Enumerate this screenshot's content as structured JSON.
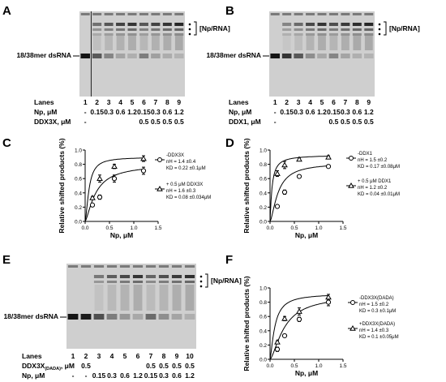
{
  "panels": {
    "A": {
      "letter": "A",
      "band_label": "[Np/RNA]",
      "free_label": "18/38mer dsRNA",
      "row_labels": [
        "Lanes",
        "Np, μM",
        "DDX3X, μM"
      ],
      "lanes": [
        "1",
        "2",
        "3",
        "4",
        "5",
        "6",
        "7",
        "8",
        "9"
      ],
      "np": [
        "-",
        "0.15",
        "0.3",
        "0.6",
        "1.2",
        "0.15",
        "0.3",
        "0.6",
        "1.2"
      ],
      "helicase": [
        "-",
        "",
        "",
        "",
        "",
        "0.5",
        "0.5",
        "0.5",
        "0.5"
      ],
      "gel": {
        "free": [
          0.95,
          0.55,
          0.3,
          0.12,
          0.06,
          0.35,
          0.15,
          0.08,
          0.04
        ],
        "shift": [
          0.0,
          0.35,
          0.55,
          0.7,
          0.8,
          0.55,
          0.7,
          0.8,
          0.9
        ]
      }
    },
    "B": {
      "letter": "B",
      "band_label": "[Np/RNA]",
      "free_label": "18/38mer dsRNA",
      "row_labels": [
        "Lanes",
        "Np, μM",
        "DDX1, μM"
      ],
      "lanes": [
        "1",
        "2",
        "3",
        "4",
        "5",
        "6",
        "7",
        "8",
        "9"
      ],
      "np": [
        "-",
        "0.15",
        "0.3",
        "0.6",
        "1.2",
        "0.15",
        "0.3",
        "0.6",
        "1.2"
      ],
      "helicase": [
        "-",
        "",
        "",
        "",
        "",
        "0.5",
        "0.5",
        "0.5",
        "0.5"
      ],
      "gel": {
        "free": [
          0.95,
          0.75,
          0.55,
          0.25,
          0.1,
          0.3,
          0.12,
          0.06,
          0.04
        ],
        "shift": [
          0.0,
          0.2,
          0.4,
          0.65,
          0.8,
          0.6,
          0.75,
          0.85,
          0.9
        ]
      }
    },
    "E": {
      "letter": "E",
      "band_label": "[Np/RNA]",
      "free_label": "18/38mer dsRNA",
      "row_labels": [
        "Lanes",
        "DDX3X",
        "(DADA)",
        ", μM",
        "Np, μM"
      ],
      "lanes": [
        "1",
        "2",
        "3",
        "4",
        "5",
        "6",
        "7",
        "8",
        "9",
        "10"
      ],
      "np": [
        "-",
        "-",
        "0.15",
        "0.3",
        "0.6",
        "1.2",
        "0.15",
        "0.3",
        "0.6",
        "1.2"
      ],
      "helicase": [
        "",
        "0.5",
        "",
        "",
        "",
        "",
        "0.5",
        "0.5",
        "0.5",
        "0.5"
      ],
      "gel": {
        "free": [
          0.95,
          0.9,
          0.6,
          0.35,
          0.2,
          0.1,
          0.45,
          0.25,
          0.12,
          0.06
        ],
        "shift": [
          0.0,
          0.0,
          0.3,
          0.5,
          0.65,
          0.8,
          0.45,
          0.6,
          0.75,
          0.85
        ]
      }
    }
  },
  "charts": {
    "C": {
      "letter": "C",
      "chart_data": {
        "type": "scatter",
        "xlabel": "Np, μM",
        "ylabel": "Relative shifted products (%)",
        "xlim": [
          0,
          1.5
        ],
        "ylim": [
          0,
          1.0
        ],
        "xticks": [
          "0.0",
          "0.5",
          "1.0",
          "1.5"
        ],
        "yticks": [
          "0.0",
          "0.2",
          "0.4",
          "0.6",
          "0.8",
          "1.0"
        ],
        "series": [
          {
            "marker": "circle",
            "x": [
              0.15,
              0.3,
              0.6,
              1.2
            ],
            "y": [
              0.23,
              0.34,
              0.6,
              0.71
            ],
            "err": [
              0.02,
              0.03,
              0.05,
              0.05
            ],
            "kd": 0.22,
            "nh": 1.4,
            "max": 0.8
          },
          {
            "marker": "triangle",
            "x": [
              0.15,
              0.3,
              0.6,
              1.2
            ],
            "y": [
              0.33,
              0.6,
              0.77,
              0.88
            ],
            "err": [
              0.02,
              0.05,
              0.03,
              0.04
            ],
            "kd": 0.08,
            "nh": 1.6,
            "max": 0.9
          }
        ],
        "legend": [
          {
            "marker": "circle",
            "lines": [
              "-DDX3X",
              "nH = 1.4 ±0.4",
              "KD = 0.22 ±0.1μM"
            ]
          },
          {
            "marker": "triangle",
            "lines": [
              "+ 0.5 μM DDX3X",
              "nH = 1.6 ±0.3",
              "KD = 0.08 ±0.034μM"
            ]
          }
        ]
      }
    },
    "D": {
      "letter": "D",
      "chart_data": {
        "type": "scatter",
        "xlabel": "Np, μM",
        "ylabel": "Relative shifted products (%)",
        "xlim": [
          0,
          1.5
        ],
        "ylim": [
          0,
          1.0
        ],
        "xticks": [
          "0.0",
          "0.5",
          "1.0",
          "1.5"
        ],
        "yticks": [
          "0.0",
          "0.2",
          "0.4",
          "0.6",
          "0.8",
          "1.0"
        ],
        "series": [
          {
            "marker": "circle",
            "x": [
              0.15,
              0.3,
              0.6,
              1.2
            ],
            "y": [
              0.21,
              0.41,
              0.63,
              0.77
            ],
            "err": [
              0.02,
              0.03,
              0.02,
              0.02
            ],
            "kd": 0.17,
            "nh": 1.5,
            "max": 0.82
          },
          {
            "marker": "triangle",
            "x": [
              0.15,
              0.3,
              0.6,
              1.2
            ],
            "y": [
              0.67,
              0.79,
              0.87,
              0.9
            ],
            "err": [
              0.04,
              0.05,
              0.02,
              0.02
            ],
            "kd": 0.04,
            "nh": 1.2,
            "max": 0.93
          }
        ],
        "legend": [
          {
            "marker": "circle",
            "lines": [
              "-DDX1",
              "nH = 1.5 ±0.2",
              "KD = 0.17 ±0.08μM"
            ]
          },
          {
            "marker": "triangle",
            "lines": [
              "+ 0.5 μM DDX1",
              "nH = 1.2 ±0.2",
              "KD = 0.04 ±0.01μM"
            ]
          }
        ]
      }
    },
    "F": {
      "letter": "F",
      "chart_data": {
        "type": "scatter",
        "xlabel": "Np, μM",
        "ylabel": "Relative shifted products (%)",
        "xlim": [
          0,
          1.5
        ],
        "ylim": [
          0,
          1.0
        ],
        "xticks": [
          "0.0",
          "0.5",
          "1.0",
          "1.5"
        ],
        "yticks": [
          "0.0",
          "0.2",
          "0.4",
          "0.6",
          "0.8",
          "1.0"
        ],
        "series": [
          {
            "marker": "circle",
            "x": [
              0.15,
              0.3,
              0.6,
              1.2
            ],
            "y": [
              0.14,
              0.33,
              0.56,
              0.8
            ],
            "err": [
              0.03,
              0.02,
              0.03,
              0.05
            ],
            "kd": 0.3,
            "nh": 1.5,
            "max": 0.9
          },
          {
            "marker": "triangle",
            "x": [
              0.15,
              0.3,
              0.6,
              1.2
            ],
            "y": [
              0.24,
              0.57,
              0.67,
              0.87
            ],
            "err": [
              0.02,
              0.03,
              0.05,
              0.04
            ],
            "kd": 0.1,
            "nh": 1.4,
            "max": 0.92
          }
        ],
        "legend": [
          {
            "marker": "circle",
            "lines": [
              "-DDX3X(DADA)",
              "nH = 1.5 ±0.2",
              "KD = 0.3 ±0.1μM"
            ]
          },
          {
            "marker": "triangle",
            "lines": [
              "+DDX3X(DADA)",
              "nH = 1.4 ±0.3",
              "KD = 0.1 ±0.05μM"
            ]
          }
        ]
      }
    }
  }
}
